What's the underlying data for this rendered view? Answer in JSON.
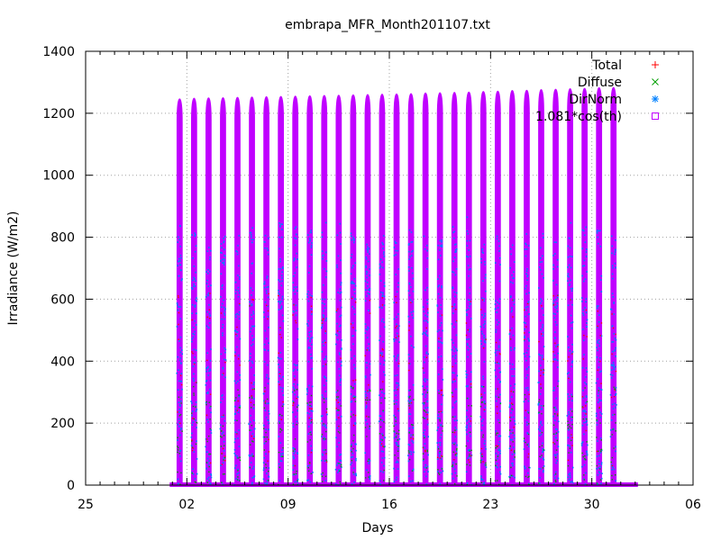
{
  "chart_data": {
    "type": "scatter",
    "title": "embrapa_MFR_Month201107.txt",
    "xlabel": "Days",
    "ylabel": "Irradiance (W/m2)",
    "x_type": "date",
    "x_range": [
      "2011-06-25",
      "2011-08-06"
    ],
    "x_ticks": [
      {
        "date": "2011-06-25",
        "label": "25"
      },
      {
        "date": "2011-07-02",
        "label": "02"
      },
      {
        "date": "2011-07-09",
        "label": "09"
      },
      {
        "date": "2011-07-16",
        "label": "16"
      },
      {
        "date": "2011-07-23",
        "label": "23"
      },
      {
        "date": "2011-07-30",
        "label": "30"
      },
      {
        "date": "2011-08-06",
        "label": "06"
      }
    ],
    "ylim": [
      0,
      1400
    ],
    "y_ticks": [
      0,
      200,
      400,
      600,
      800,
      1000,
      1200,
      1400
    ],
    "grid": true,
    "legend_position": "top-right",
    "series": [
      {
        "name": "Total",
        "marker": "+",
        "color": "#ff0000"
      },
      {
        "name": "Diffuse",
        "marker": "x",
        "color": "#00a000"
      },
      {
        "name": "DirNorm",
        "marker": "*",
        "color": "#0080ff"
      },
      {
        "name": "1.081*cos(th)",
        "marker": "square",
        "color": "#c000ff"
      }
    ],
    "data_start": "2011-07-01",
    "data_end": "2011-08-01",
    "daily_peak_cos": [
      1248,
      1250,
      1251,
      1252,
      1253,
      1254,
      1255,
      1256,
      1257,
      1258,
      1259,
      1260,
      1261,
      1262,
      1263,
      1264,
      1265,
      1267,
      1268,
      1269,
      1270,
      1272,
      1273,
      1275,
      1276,
      1278,
      1279,
      1281,
      1282,
      1284,
      1285
    ]
  }
}
